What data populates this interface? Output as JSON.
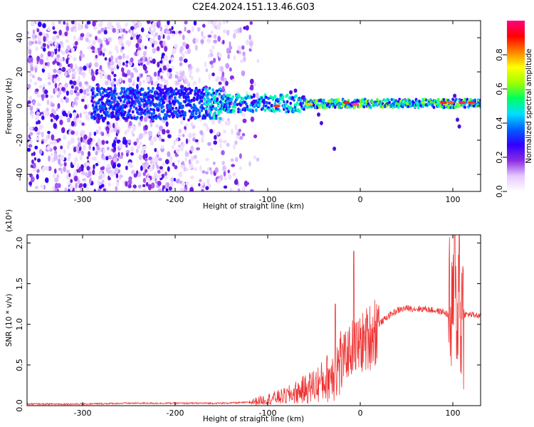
{
  "figure_title": "C2E4.2024.151.13.46.G03",
  "chart_data": [
    {
      "type": "heatmap",
      "xlabel": "Height of straight line (km)",
      "ylabel": "Frequency (Hz)",
      "xlim": [
        -360,
        130
      ],
      "ylim": [
        -50,
        50
      ],
      "x_ticks": [
        -300,
        -200,
        -100,
        0,
        100
      ],
      "y_ticks": [
        -40,
        -20,
        0,
        20,
        40
      ],
      "colorbar": {
        "label": "Normalized spectral amplitude",
        "range": [
          0,
          1
        ],
        "ticks": [
          "0.0",
          "0.2",
          "0.4",
          "0.6",
          "0.8"
        ],
        "tick_values": [
          0,
          0.2,
          0.4,
          0.6,
          0.8
        ],
        "colors": [
          "#ffffff",
          "#e6c8ff",
          "#8a2be2",
          "#3000ff",
          "#0060ff",
          "#00e0ff",
          "#00ff60",
          "#a0ff00",
          "#ffff00",
          "#ff8000",
          "#ff0000",
          "#ff0080"
        ]
      },
      "grid": false
    },
    {
      "type": "line",
      "xlabel": "Height of straight line (km)",
      "ylabel": "SNR (10 * v/v)",
      "y_multiplier": "(x10⁴)",
      "xlim": [
        -360,
        130
      ],
      "ylim": [
        0,
        2.1
      ],
      "x_ticks": [
        -300,
        -200,
        -100,
        0,
        100
      ],
      "y_ticks": [
        "0.0",
        "0.5",
        "1.0",
        "1.5",
        "2.0"
      ],
      "y_tick_values": [
        0,
        0.5,
        1.0,
        1.5,
        2.0
      ],
      "color": "#ee3333",
      "series_envelope": {
        "x": [
          -360,
          -300,
          -250,
          -200,
          -150,
          -120,
          -100,
          -80,
          -60,
          -40,
          -30,
          -20,
          -10,
          0,
          10,
          20,
          30,
          40,
          50,
          60,
          70,
          80,
          90,
          95,
          100,
          105,
          110,
          115,
          120,
          130
        ],
        "y": [
          0.02,
          0.02,
          0.03,
          0.03,
          0.03,
          0.04,
          0.08,
          0.12,
          0.2,
          0.3,
          0.4,
          0.55,
          0.7,
          0.75,
          0.85,
          1.0,
          1.1,
          1.17,
          1.2,
          1.19,
          1.19,
          1.17,
          1.15,
          1.12,
          1.0,
          1.3,
          1.12,
          1.12,
          1.12,
          1.1
        ]
      },
      "peaks": [
        {
          "x": -27,
          "y": 1.25
        },
        {
          "x": -7,
          "y": 1.9
        },
        {
          "x": 102,
          "y": 2.1
        },
        {
          "x": 107,
          "y": 2.1
        }
      ],
      "grid": false
    }
  ]
}
